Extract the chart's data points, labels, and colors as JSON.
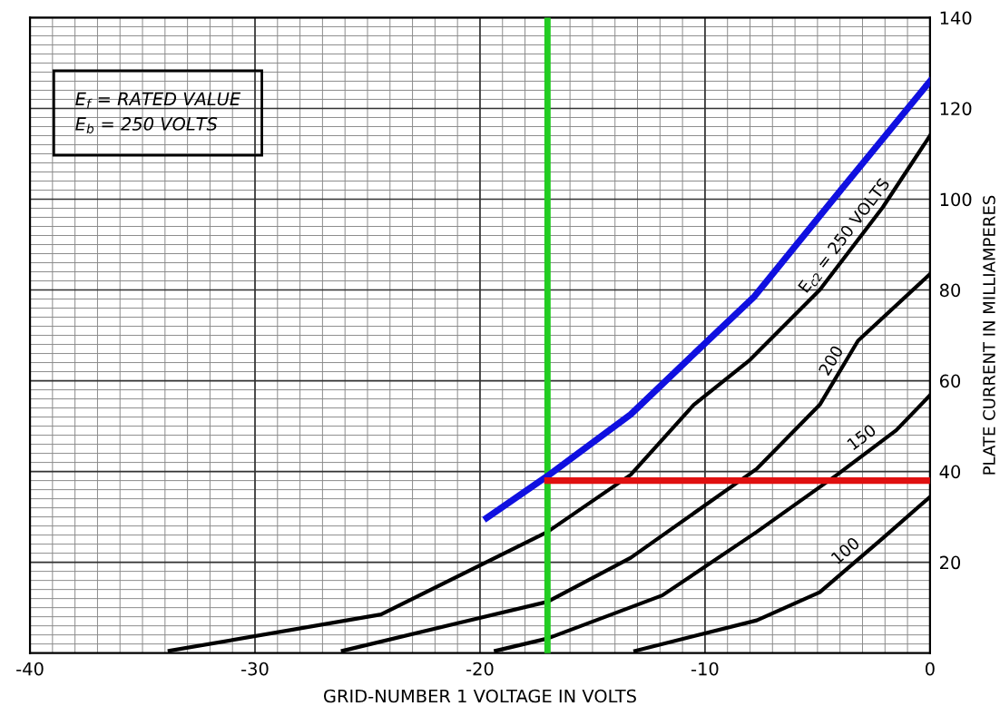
{
  "chart_data": {
    "type": "line",
    "xlabel": "GRID-NUMBER 1 VOLTAGE IN VOLTS",
    "ylabel": "PLATE CURRENT IN MILLIAMPERES",
    "annotations": [
      "E$_{f}$ = RATED VALUE\nE$_{b}$ = 250 VOLTS"
    ],
    "xlim": [
      -40,
      0
    ],
    "ylim": [
      0,
      140
    ],
    "xticks": [
      -40,
      -30,
      -20,
      -10,
      0
    ],
    "yticks": [
      20,
      40,
      60,
      80,
      100,
      120,
      140
    ],
    "grid": true,
    "series": [
      {
        "name": "E$_{c2}$ = 250 VOLTS",
        "color": "#000000",
        "x": [
          -33.8,
          -24.4,
          -17,
          -13.3,
          -10.5,
          -8.0,
          -4.9,
          -2.1,
          0
        ],
        "values": [
          0.5,
          8.5,
          26.7,
          39.3,
          54.7,
          64.6,
          80,
          98.2,
          114
        ]
      },
      {
        "name": "200",
        "color": "#000000",
        "x": [
          -26.1,
          -17,
          -13.3,
          -7.7,
          -4.9,
          -3.2,
          0
        ],
        "values": [
          0.5,
          11.3,
          21,
          40.6,
          54.7,
          68.8,
          83.5
        ]
      },
      {
        "name": "150",
        "color": "#000000",
        "x": [
          -19.3,
          -17,
          -11.9,
          -7.7,
          -4.1,
          -1.5,
          0
        ],
        "values": [
          0.5,
          3.2,
          12.7,
          26.7,
          39.4,
          49.1,
          56.8
        ]
      },
      {
        "name": "100",
        "color": "#000000",
        "x": [
          -13.1,
          -7.7,
          -4.9,
          -2.1,
          0
        ],
        "values": [
          0.5,
          7.2,
          13.4,
          25.3,
          34.4
        ]
      },
      {
        "color": "#1010e0",
        "x": [
          -19.7,
          -17,
          -13.3,
          -10.2,
          -7.8,
          -3.9,
          0
        ],
        "values": [
          29.8,
          39,
          52.6,
          67.3,
          78.6,
          102.4,
          126
        ]
      },
      {
        "color": "#e01010",
        "x": [
          -17,
          0
        ],
        "values": [
          38,
          38
        ]
      }
    ],
    "ref_lines": [
      {
        "axis": "x",
        "value": -17,
        "color": "#22cc22"
      }
    ]
  }
}
